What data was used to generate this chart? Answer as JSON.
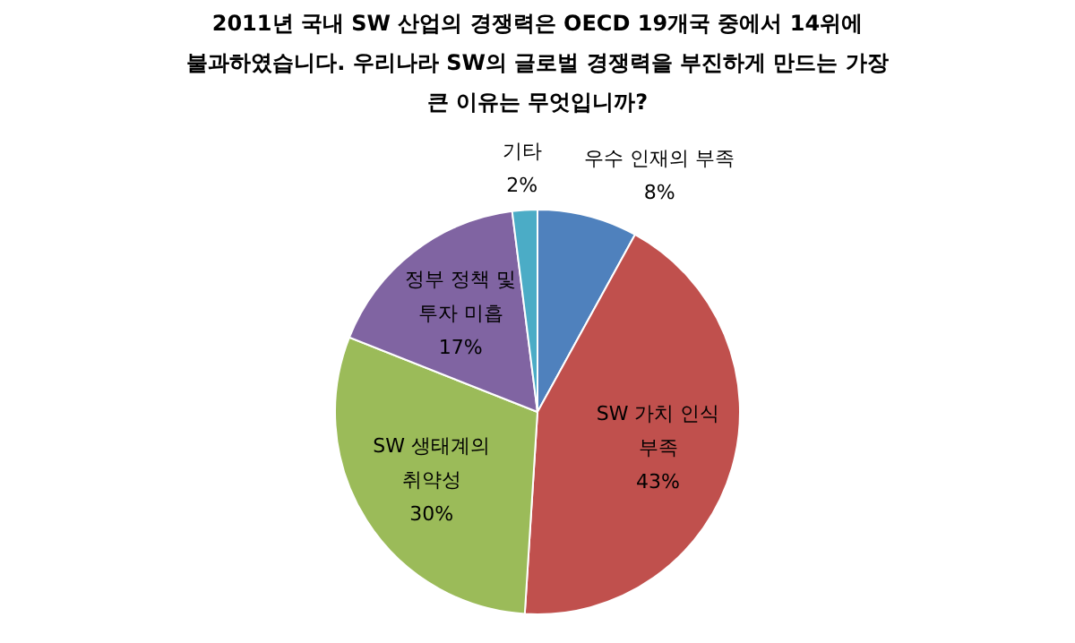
{
  "chart_data": {
    "type": "pie",
    "title": "2011년 국내 SW 산업의 경쟁력은 OECD 19개국 중에서 14위에 불과하였습니다. 우리나라 SW의 글로벌 경쟁력을 부진하게 만드는 가장 큰 이유는 무엇입니까?",
    "categories": [
      "우수 인재의 부족",
      "SW 가치 인식 부족",
      "SW 생태계의 취약성",
      "정부 정책 및 투자 미흡",
      "기타"
    ],
    "values": [
      8,
      43,
      30,
      17,
      2
    ],
    "colors": [
      "#4f81bd",
      "#c0504d",
      "#9bbb59",
      "#8064a2",
      "#4bacc6"
    ],
    "value_labels": [
      "8%",
      "43%",
      "30%",
      "17%",
      "2%"
    ],
    "legend": false
  }
}
